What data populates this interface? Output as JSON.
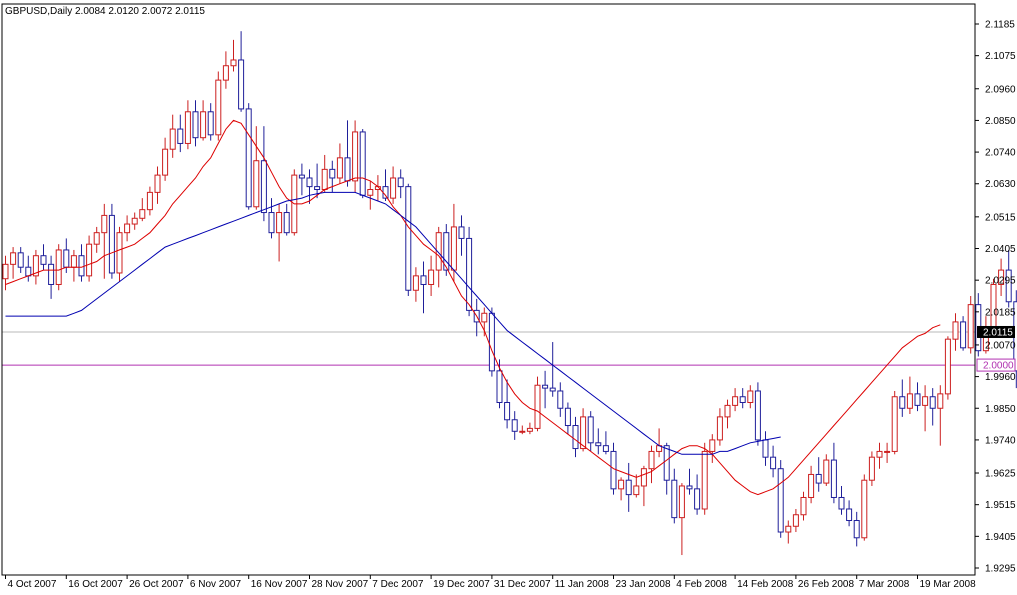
{
  "header": {
    "symbol": "GBPUSD,Daily",
    "ohlc": "2.0084 2.0120 2.0072 2.0115"
  },
  "colors": {
    "bull": "#cc1f1f",
    "bear": "#1f1f9a",
    "ma_fast": "#dd0000",
    "ma_slow": "#0000b0",
    "hline_level": "#b030b0",
    "hline_bid": "#b8b8b8",
    "current_price_bg": "#000000",
    "level_label_text": "#b030b0"
  },
  "chart_data": {
    "type": "candlestick",
    "timeframe": "Daily",
    "ylim": [
      1.9295,
      2.1185
    ],
    "y_ticks": [
      "2.1185",
      "2.1075",
      "2.0960",
      "2.0850",
      "2.0740",
      "2.0630",
      "2.0515",
      "2.0405",
      "2.0295",
      "2.0185",
      "2.0070",
      "1.9960",
      "1.9850",
      "1.9740",
      "1.9625",
      "1.9515",
      "1.9405",
      "1.9295"
    ],
    "x_labels": [
      "4 Oct 2007",
      "16 Oct 2007",
      "26 Oct 2007",
      "6 Nov 2007",
      "16 Nov 2007",
      "28 Nov 2007",
      "7 Dec 2007",
      "19 Dec 2007",
      "31 Dec 2007",
      "11 Jan 2008",
      "23 Jan 2008",
      "4 Feb 2008",
      "14 Feb 2008",
      "26 Feb 2008",
      "7 Mar 2008",
      "19 Mar 2008"
    ],
    "x_label_bar_index": [
      0,
      8,
      16,
      24,
      32,
      40,
      48,
      56,
      64,
      72,
      80,
      88,
      96,
      104,
      112,
      120
    ],
    "current_price": "2.0115",
    "level_line": "2.0000",
    "candles": [
      [
        2.03,
        2.038,
        2.026,
        2.035
      ],
      [
        2.035,
        2.041,
        2.03,
        2.039
      ],
      [
        2.039,
        2.041,
        2.032,
        2.034
      ],
      [
        2.034,
        2.038,
        2.029,
        2.031
      ],
      [
        2.031,
        2.04,
        2.028,
        2.038
      ],
      [
        2.038,
        2.042,
        2.033,
        2.035
      ],
      [
        2.035,
        2.038,
        2.023,
        2.028
      ],
      [
        2.028,
        2.042,
        2.026,
        2.04
      ],
      [
        2.04,
        2.044,
        2.032,
        2.034
      ],
      [
        2.034,
        2.04,
        2.029,
        2.038
      ],
      [
        2.038,
        2.042,
        2.029,
        2.031
      ],
      [
        2.031,
        2.045,
        2.029,
        2.042
      ],
      [
        2.042,
        2.048,
        2.039,
        2.046
      ],
      [
        2.046,
        2.056,
        2.03,
        2.052
      ],
      [
        2.052,
        2.056,
        2.03,
        2.032
      ],
      [
        2.032,
        2.048,
        2.029,
        2.046
      ],
      [
        2.046,
        2.052,
        2.043,
        2.049
      ],
      [
        2.049,
        2.053,
        2.047,
        2.051
      ],
      [
        2.051,
        2.058,
        2.05,
        2.054
      ],
      [
        2.054,
        2.062,
        2.052,
        2.06
      ],
      [
        2.06,
        2.069,
        2.056,
        2.066
      ],
      [
        2.066,
        2.079,
        2.064,
        2.075
      ],
      [
        2.075,
        2.087,
        2.072,
        2.082
      ],
      [
        2.082,
        2.087,
        2.074,
        2.077
      ],
      [
        2.077,
        2.092,
        2.075,
        2.088
      ],
      [
        2.088,
        2.092,
        2.076,
        2.079
      ],
      [
        2.079,
        2.092,
        2.078,
        2.088
      ],
      [
        2.088,
        2.091,
        2.078,
        2.08
      ],
      [
        2.08,
        2.102,
        2.078,
        2.099
      ],
      [
        2.099,
        2.109,
        2.096,
        2.104
      ],
      [
        2.104,
        2.113,
        2.102,
        2.106
      ],
      [
        2.106,
        2.116,
        2.088,
        2.089
      ],
      [
        2.089,
        2.091,
        2.054,
        2.055
      ],
      [
        2.055,
        2.083,
        2.054,
        2.071
      ],
      [
        2.071,
        2.083,
        2.05,
        2.053
      ],
      [
        2.053,
        2.058,
        2.044,
        2.046
      ],
      [
        2.046,
        2.056,
        2.036,
        2.053
      ],
      [
        2.053,
        2.056,
        2.045,
        2.046
      ],
      [
        2.046,
        2.068,
        2.045,
        2.066
      ],
      [
        2.066,
        2.07,
        2.059,
        2.065
      ],
      [
        2.065,
        2.068,
        2.056,
        2.062
      ],
      [
        2.062,
        2.07,
        2.058,
        2.061
      ],
      [
        2.061,
        2.073,
        2.06,
        2.068
      ],
      [
        2.068,
        2.071,
        2.06,
        2.065
      ],
      [
        2.065,
        2.077,
        2.063,
        2.072
      ],
      [
        2.072,
        2.085,
        2.062,
        2.064
      ],
      [
        2.064,
        2.085,
        2.06,
        2.081
      ],
      [
        2.081,
        2.082,
        2.058,
        2.059
      ],
      [
        2.059,
        2.064,
        2.054,
        2.061
      ],
      [
        2.061,
        2.066,
        2.057,
        2.062
      ],
      [
        2.062,
        2.068,
        2.057,
        2.058
      ],
      [
        2.058,
        2.069,
        2.056,
        2.065
      ],
      [
        2.065,
        2.068,
        2.058,
        2.062
      ],
      [
        2.062,
        2.063,
        2.024,
        2.026
      ],
      [
        2.026,
        2.034,
        2.022,
        2.031
      ],
      [
        2.031,
        2.036,
        2.018,
        2.028
      ],
      [
        2.028,
        2.038,
        2.024,
        2.033
      ],
      [
        2.033,
        2.048,
        2.027,
        2.046
      ],
      [
        2.046,
        2.049,
        2.031,
        2.033
      ],
      [
        2.033,
        2.056,
        2.029,
        2.048
      ],
      [
        2.048,
        2.052,
        2.038,
        2.044
      ],
      [
        2.044,
        2.048,
        2.017,
        2.019
      ],
      [
        2.019,
        2.023,
        2.01,
        2.015
      ],
      [
        2.015,
        2.02,
        2.01,
        2.018
      ],
      [
        2.018,
        2.02,
        1.996,
        1.998
      ],
      [
        1.998,
        2.002,
        1.985,
        1.987
      ],
      [
        1.987,
        1.995,
        1.978,
        1.981
      ],
      [
        1.981,
        1.984,
        1.974,
        1.977
      ],
      [
        1.977,
        1.979,
        1.976,
        1.977
      ],
      [
        1.977,
        1.98,
        1.976,
        1.978
      ],
      [
        1.978,
        1.996,
        1.977,
        1.993
      ],
      [
        1.993,
        1.998,
        1.985,
        1.992
      ],
      [
        1.992,
        2.008,
        1.989,
        1.991
      ],
      [
        1.991,
        1.994,
        1.982,
        1.985
      ],
      [
        1.985,
        1.987,
        1.976,
        1.979
      ],
      [
        1.979,
        1.982,
        1.968,
        1.971
      ],
      [
        1.971,
        1.985,
        1.97,
        1.982
      ],
      [
        1.982,
        1.984,
        1.97,
        1.973
      ],
      [
        1.973,
        1.978,
        1.969,
        1.972
      ],
      [
        1.972,
        1.977,
        1.969,
        1.97
      ],
      [
        1.97,
        1.973,
        1.955,
        1.957
      ],
      [
        1.957,
        1.961,
        1.953,
        1.96
      ],
      [
        1.96,
        1.966,
        1.949,
        1.955
      ],
      [
        1.955,
        1.962,
        1.954,
        1.958
      ],
      [
        1.958,
        1.965,
        1.951,
        1.964
      ],
      [
        1.964,
        1.972,
        1.959,
        1.97
      ],
      [
        1.97,
        1.978,
        1.968,
        1.972
      ],
      [
        1.972,
        1.973,
        1.955,
        1.96
      ],
      [
        1.96,
        1.964,
        1.945,
        1.947
      ],
      [
        1.947,
        1.959,
        1.934,
        1.958
      ],
      [
        1.958,
        1.964,
        1.955,
        1.957
      ],
      [
        1.957,
        1.962,
        1.948,
        1.95
      ],
      [
        1.95,
        1.973,
        1.948,
        1.97
      ],
      [
        1.97,
        1.976,
        1.966,
        1.974
      ],
      [
        1.974,
        1.985,
        1.972,
        1.982
      ],
      [
        1.982,
        1.988,
        1.978,
        1.986
      ],
      [
        1.986,
        1.992,
        1.984,
        1.989
      ],
      [
        1.989,
        1.992,
        1.985,
        1.987
      ],
      [
        1.987,
        1.993,
        1.985,
        1.991
      ],
      [
        1.991,
        1.994,
        1.972,
        1.974
      ],
      [
        1.974,
        1.977,
        1.965,
        1.968
      ],
      [
        1.968,
        1.972,
        1.961,
        1.964
      ],
      [
        1.964,
        1.967,
        1.94,
        1.942
      ],
      [
        1.942,
        1.946,
        1.938,
        1.944
      ],
      [
        1.944,
        1.95,
        1.942,
        1.948
      ],
      [
        1.948,
        1.956,
        1.946,
        1.954
      ],
      [
        1.954,
        1.965,
        1.952,
        1.962
      ],
      [
        1.962,
        1.968,
        1.956,
        1.959
      ],
      [
        1.959,
        1.969,
        1.958,
        1.967
      ],
      [
        1.967,
        1.973,
        1.952,
        1.954
      ],
      [
        1.954,
        1.958,
        1.948,
        1.95
      ],
      [
        1.95,
        1.953,
        1.944,
        1.946
      ],
      [
        1.946,
        1.949,
        1.937,
        1.94
      ],
      [
        1.94,
        1.962,
        1.939,
        1.96
      ],
      [
        1.96,
        1.97,
        1.958,
        1.968
      ],
      [
        1.968,
        1.973,
        1.964,
        1.97
      ],
      [
        1.97,
        1.973,
        1.966,
        1.97
      ],
      [
        1.97,
        1.991,
        1.969,
        1.989
      ],
      [
        1.989,
        1.995,
        1.982,
        1.985
      ],
      [
        1.985,
        1.996,
        1.983,
        1.99
      ],
      [
        1.99,
        1.994,
        1.984,
        1.986
      ],
      [
        1.986,
        1.993,
        1.977,
        1.989
      ],
      [
        1.989,
        1.992,
        1.979,
        1.985
      ],
      [
        1.985,
        1.993,
        1.972,
        1.99
      ],
      [
        1.99,
        2.01,
        1.988,
        2.009
      ],
      [
        2.009,
        2.018,
        2.005,
        2.015
      ],
      [
        2.015,
        2.017,
        2.005,
        2.006
      ],
      [
        2.006,
        2.024,
        2.004,
        2.021
      ],
      [
        2.021,
        2.025,
        2.003,
        2.005
      ],
      [
        2.005,
        2.017,
        2.004,
        2.013
      ],
      [
        2.013,
        2.03,
        2.011,
        2.028
      ],
      [
        2.028,
        2.037,
        2.024,
        2.033
      ],
      [
        2.033,
        2.04,
        2.02,
        2.022
      ],
      [
        2.022,
        2.026,
        1.992,
        1.998
      ],
      [
        1.998,
        2.027,
        1.995,
        2.008
      ],
      [
        2.008,
        2.012,
        2.007,
        2.0115
      ]
    ],
    "ma_fast": [
      2.028,
      2.029,
      2.03,
      2.031,
      2.032,
      2.033,
      2.033,
      2.033,
      2.034,
      2.034,
      2.034,
      2.035,
      2.036,
      2.038,
      2.039,
      2.04,
      2.041,
      2.042,
      2.044,
      2.046,
      2.049,
      2.052,
      2.056,
      2.059,
      2.062,
      2.065,
      2.069,
      2.072,
      2.077,
      2.082,
      2.085,
      2.084,
      2.08,
      2.076,
      2.072,
      2.067,
      2.062,
      2.058,
      2.056,
      2.056,
      2.057,
      2.059,
      2.061,
      2.062,
      2.063,
      2.064,
      2.065,
      2.065,
      2.064,
      2.062,
      2.059,
      2.055,
      2.052,
      2.048,
      2.045,
      2.042,
      2.04,
      2.038,
      2.034,
      2.029,
      2.024,
      2.021,
      2.017,
      2.012,
      2.005,
      1.999,
      1.994,
      1.99,
      1.987,
      1.985,
      1.984,
      1.982,
      1.98,
      1.978,
      1.976,
      1.974,
      1.972,
      1.97,
      1.968,
      1.966,
      1.964,
      1.963,
      1.962,
      1.961,
      1.962,
      1.963,
      1.965,
      1.967,
      1.969,
      1.971,
      1.972,
      1.972,
      1.971,
      1.969,
      1.966,
      1.963,
      1.96,
      1.958,
      1.956,
      1.955,
      1.956,
      1.957,
      1.959,
      1.961,
      1.964,
      1.967,
      1.97,
      1.973,
      1.976,
      1.979,
      1.982,
      1.985,
      1.988,
      1.991,
      1.994,
      1.997,
      2.0,
      2.003,
      2.006,
      2.008,
      2.01,
      2.011,
      2.013,
      2.014
    ],
    "ma_slow": [
      2.017,
      2.017,
      2.017,
      2.017,
      2.017,
      2.017,
      2.017,
      2.017,
      2.017,
      2.018,
      2.019,
      2.021,
      2.023,
      2.025,
      2.027,
      2.029,
      2.031,
      2.033,
      2.035,
      2.037,
      2.039,
      2.041,
      2.042,
      2.043,
      2.044,
      2.045,
      2.046,
      2.047,
      2.048,
      2.049,
      2.05,
      2.051,
      2.052,
      2.053,
      2.054,
      2.055,
      2.056,
      2.057,
      2.0575,
      2.058,
      2.059,
      2.0595,
      2.06,
      2.06,
      2.06,
      2.06,
      2.06,
      2.059,
      2.058,
      2.057,
      2.056,
      2.054,
      2.052,
      2.05,
      2.048,
      2.045,
      2.042,
      2.039,
      2.036,
      2.033,
      2.03,
      2.027,
      2.024,
      2.021,
      2.018,
      2.015,
      2.012,
      2.01,
      2.008,
      2.006,
      2.004,
      2.002,
      2.0,
      1.998,
      1.996,
      1.994,
      1.992,
      1.99,
      1.988,
      1.986,
      1.984,
      1.982,
      1.98,
      1.978,
      1.976,
      1.974,
      1.972,
      1.971,
      1.97,
      1.969,
      1.969,
      1.969,
      1.969,
      1.969,
      1.97,
      1.97,
      1.971,
      1.972,
      1.973,
      1.9735,
      1.974,
      1.9745,
      1.975
    ]
  }
}
